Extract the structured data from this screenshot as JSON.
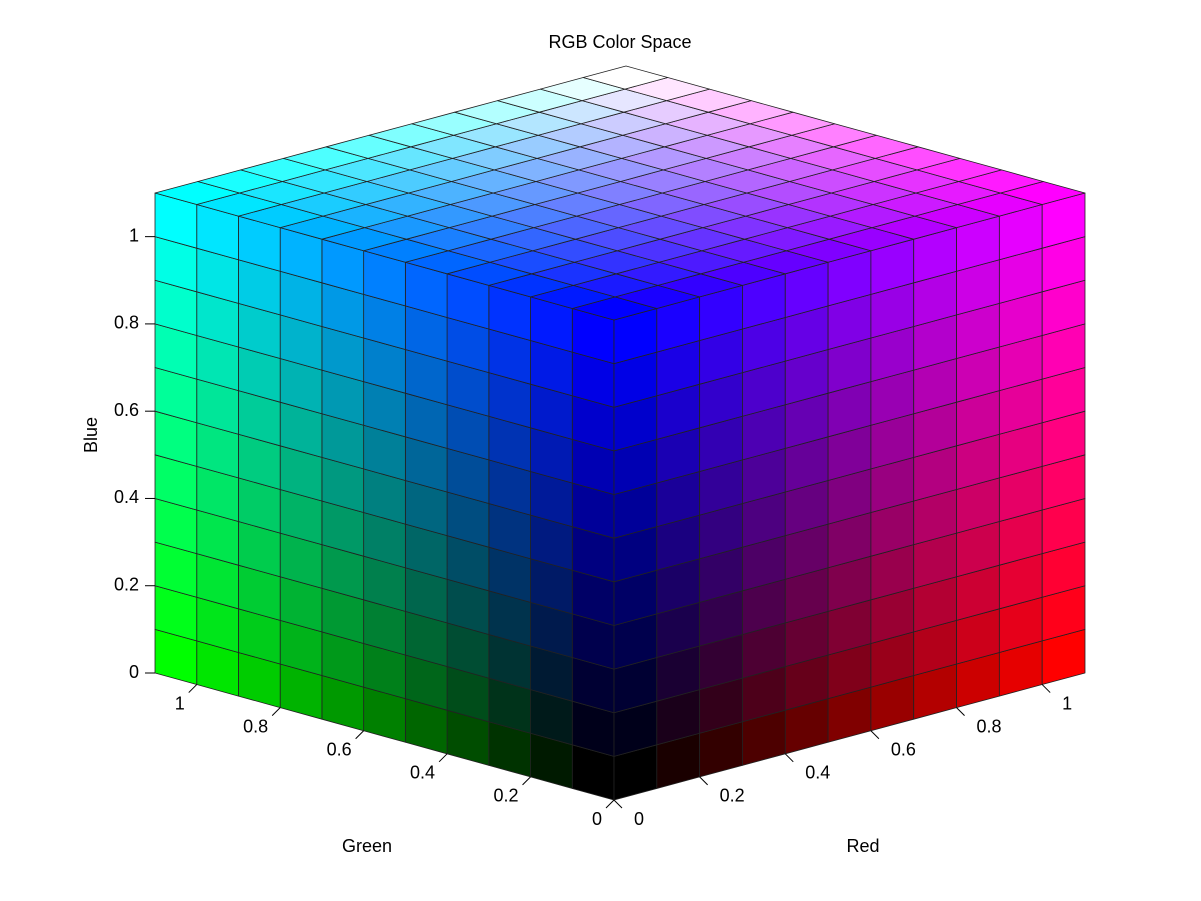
{
  "chart_data": {
    "type": "cube3d",
    "title": "RGB Color Space",
    "xlabel": "Red",
    "ylabel": "Green",
    "zlabel": "Blue",
    "xlim": [
      0,
      1.1
    ],
    "ylim": [
      0,
      1.1
    ],
    "zlim": [
      0,
      1.1
    ],
    "xticks": [
      0,
      0.2,
      0.4,
      0.6,
      0.8,
      1
    ],
    "yticks": [
      0,
      0.2,
      0.4,
      0.6,
      0.8,
      1
    ],
    "zticks": [
      0,
      0.2,
      0.4,
      0.6,
      0.8,
      1
    ]
  }
}
